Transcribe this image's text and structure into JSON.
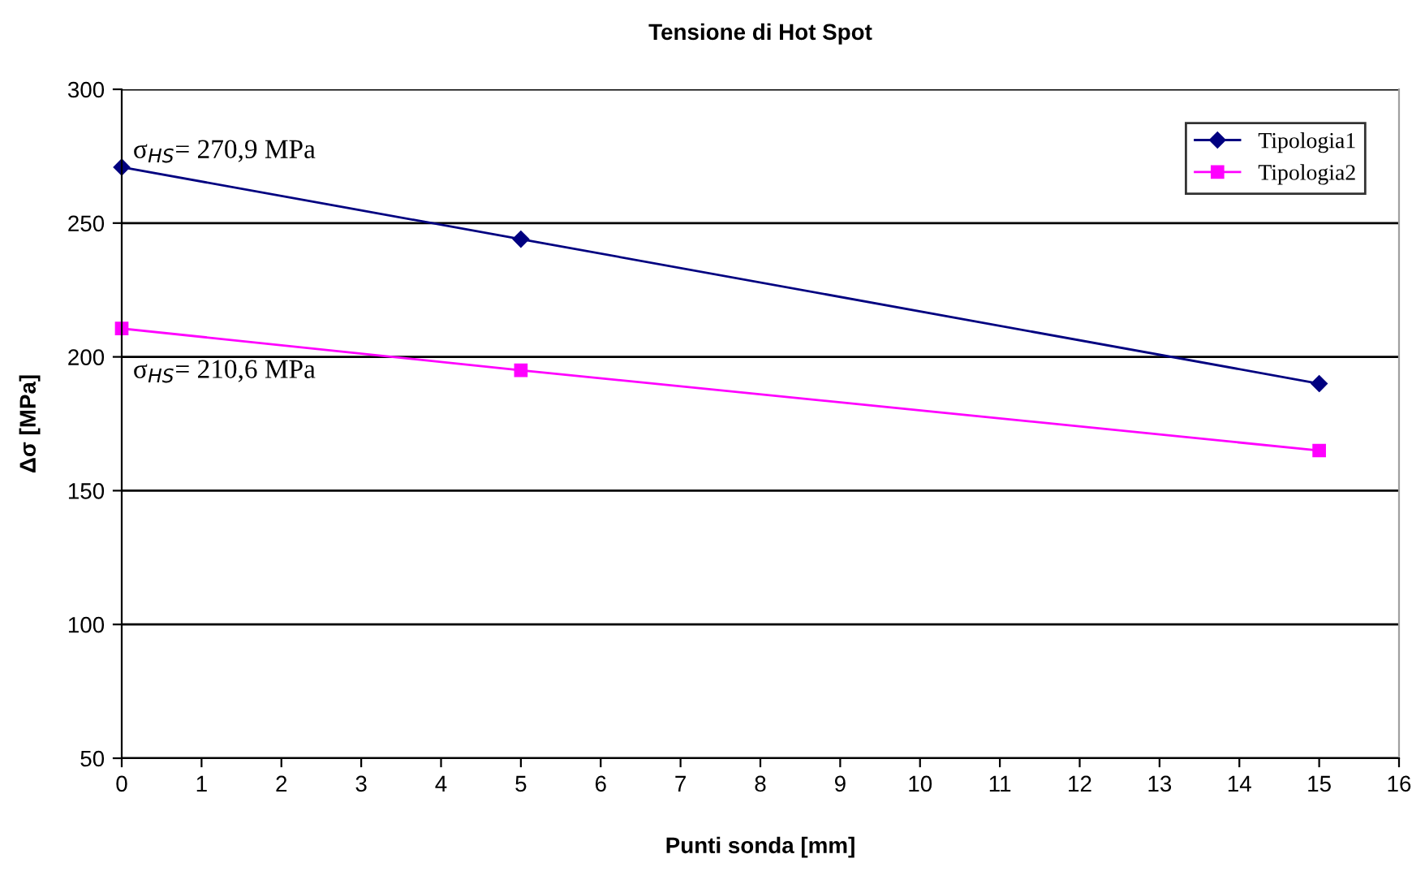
{
  "chart_data": {
    "type": "line",
    "title": "Tensione di Hot Spot",
    "xlabel": "Punti sonda [mm]",
    "ylabel": "Δσ [MPa]",
    "x": [
      0,
      5,
      15
    ],
    "series": [
      {
        "name": "Tipologia1",
        "color": "#000080",
        "marker": "diamond",
        "values": [
          270.9,
          244,
          190
        ]
      },
      {
        "name": "Tipologia2",
        "color": "#ff00ff",
        "marker": "square",
        "values": [
          210.6,
          195,
          165
        ]
      }
    ],
    "annotations": [
      {
        "text": "σ$_{HS}$= 270,9 MPa",
        "x": 0,
        "y": 270.9
      },
      {
        "text": "σ$_{HS}$= 210,6 MPa",
        "x": 0,
        "y": 210.6
      }
    ],
    "xlim": [
      0,
      16
    ],
    "xticks": [
      0,
      1,
      2,
      3,
      4,
      5,
      6,
      7,
      8,
      9,
      10,
      11,
      12,
      13,
      14,
      15,
      16
    ],
    "ylim": [
      50,
      300
    ],
    "yticks": [
      50,
      100,
      150,
      200,
      250,
      300
    ],
    "grid": "y",
    "legend": "top right",
    "line_style": "solid"
  }
}
